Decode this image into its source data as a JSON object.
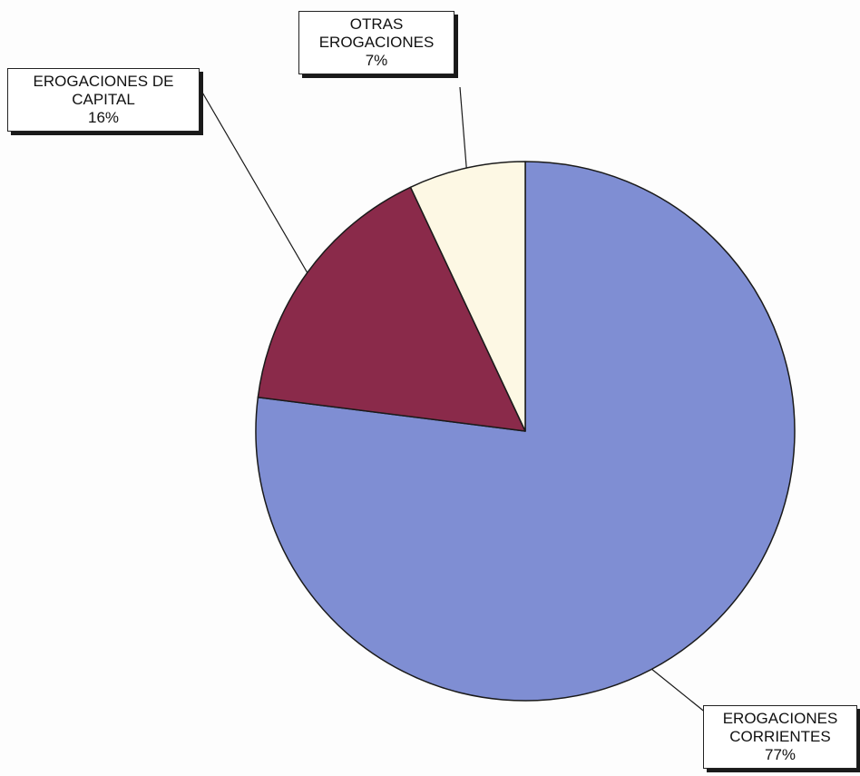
{
  "chart_data": {
    "type": "pie",
    "start_angle": "12 o'clock",
    "direction": "clockwise",
    "slices": [
      {
        "label_lines": [
          "EROGACIONES",
          "CORRIENTES"
        ],
        "value": 77,
        "value_label": "77%",
        "color": "#7f8ed3"
      },
      {
        "label_lines": [
          "EROGACIONES DE",
          "CAPITAL"
        ],
        "value": 16,
        "value_label": "16%",
        "color": "#8a2a4a"
      },
      {
        "label_lines": [
          "OTRAS",
          "EROGACIONES"
        ],
        "value": 7,
        "value_label": "7%",
        "color": "#fdf8e4"
      }
    ],
    "legend": "none",
    "data_labels": "callout boxes with leader lines"
  }
}
